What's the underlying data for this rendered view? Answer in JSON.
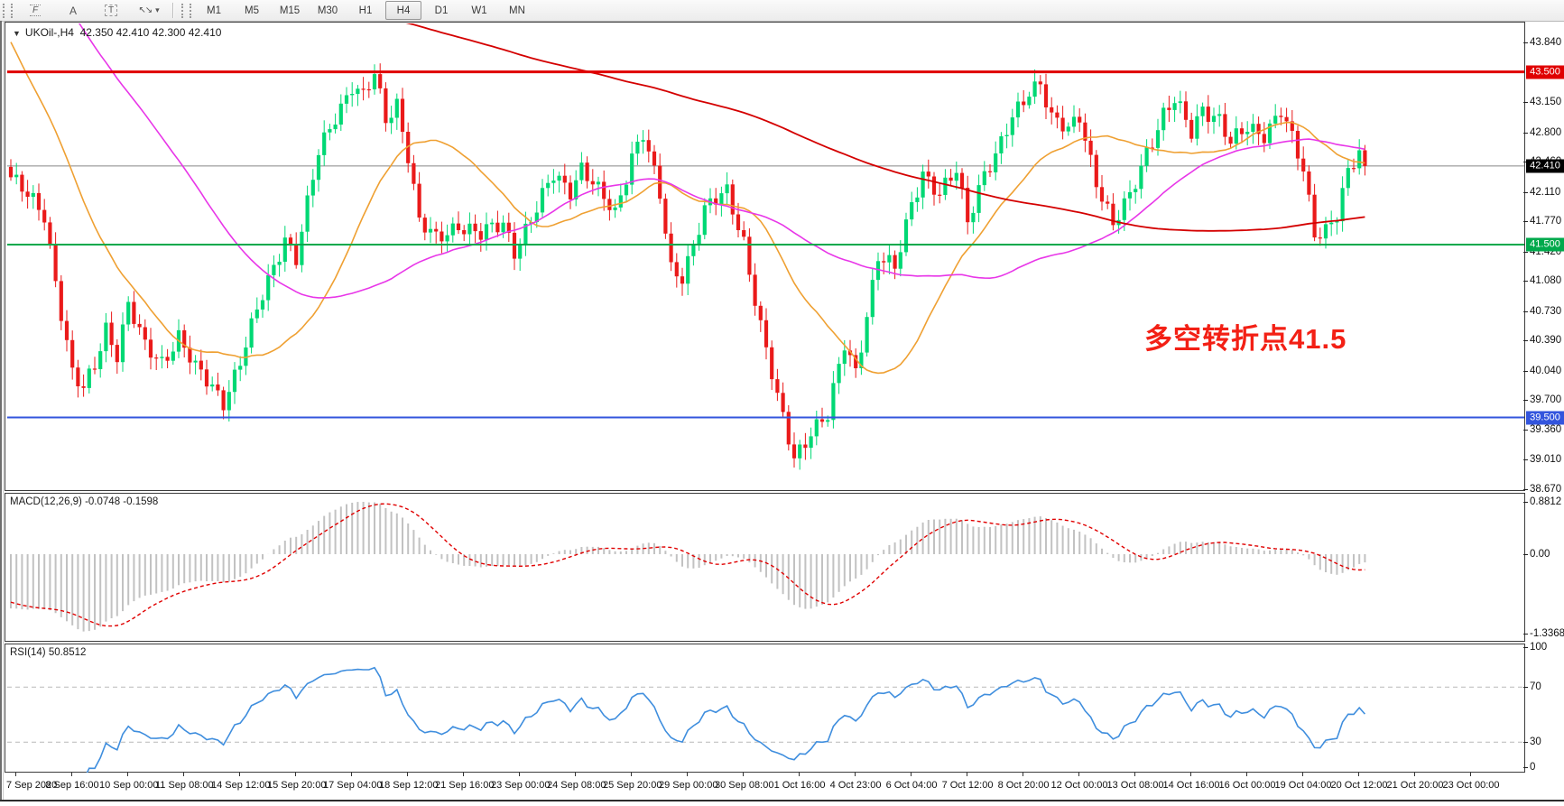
{
  "toolbar": {
    "dropdown_caret": "▾",
    "tools": [
      {
        "name": "fibonacci-retracement",
        "glyph": "F",
        "style": "fibo"
      },
      {
        "name": "text",
        "glyph": "A",
        "style": ""
      },
      {
        "name": "text-label",
        "glyph": "T",
        "style": "boxed"
      },
      {
        "name": "arrows",
        "glyph": "↖↘",
        "style": "arrows",
        "dropdown": true
      }
    ],
    "timeframes": [
      {
        "label": "M1"
      },
      {
        "label": "M5"
      },
      {
        "label": "M15"
      },
      {
        "label": "M30"
      },
      {
        "label": "H1"
      },
      {
        "label": "H4",
        "active": true
      },
      {
        "label": "D1"
      },
      {
        "label": "W1"
      },
      {
        "label": "MN"
      }
    ]
  },
  "chart": {
    "title": {
      "collapse_arrow": "▼",
      "symbol": "UKOil-,H4",
      "ohlc": "42.350 42.410 42.300 42.410"
    },
    "annotation": {
      "text": "多空转折点41.5",
      "color": "#f32015"
    }
  },
  "chart_data": {
    "type": "candlestick",
    "symbol": "UKOil-",
    "timeframe": "H4",
    "ohlc_display": {
      "open": "42.350",
      "high": "42.410",
      "low": "42.300",
      "close": "42.410"
    },
    "y_axis": {
      "range": [
        38.6,
        44.07
      ],
      "ticks": [
        "43.840",
        "43.150",
        "42.800",
        "42.460",
        "42.110",
        "41.770",
        "41.420",
        "41.080",
        "40.730",
        "40.390",
        "40.040",
        "39.700",
        "39.360",
        "39.010",
        "38.670"
      ]
    },
    "levels": [
      {
        "value": 43.5,
        "label": "43.500",
        "color": "#e00000",
        "width": 3
      },
      {
        "value": 41.5,
        "label": "41.500",
        "color": "#00a94c",
        "width": 2
      },
      {
        "value": 39.5,
        "label": "39.500",
        "color": "#3355dd",
        "width": 2
      }
    ],
    "current_price": {
      "value": 42.41,
      "label": "42.410",
      "line_color": "#888888",
      "badge_bg": "#000000"
    },
    "x_axis": {
      "bars_per_label": 10,
      "labels": [
        "7 Sep 2020",
        "8 Sep 16:00",
        "10 Sep 00:00",
        "11 Sep 08:00",
        "14 Sep 12:00",
        "15 Sep 20:00",
        "17 Sep 04:00",
        "18 Sep 12:00",
        "21 Sep 16:00",
        "23 Sep 00:00",
        "24 Sep 08:00",
        "25 Sep 20:00",
        "29 Sep 00:00",
        "30 Sep 08:00",
        "1 Oct 16:00",
        "4 Oct 23:00",
        "6 Oct 04:00",
        "7 Oct 12:00",
        "8 Oct 20:00",
        "12 Oct 00:00",
        "13 Oct 08:00",
        "14 Oct 16:00",
        "16 Oct 00:00",
        "19 Oct 04:00",
        "20 Oct 12:00",
        "21 Oct 20:00",
        "23 Oct 00:00"
      ]
    },
    "moving_averages": [
      {
        "name": "fast-ma",
        "color": "#efa032",
        "width": 1.6
      },
      {
        "name": "medium-ma",
        "color": "#e836e8",
        "width": 1.6
      },
      {
        "name": "slow-ma",
        "color": "#d40000",
        "width": 1.8
      }
    ],
    "indicators": {
      "macd": {
        "label": "MACD(12,26,9) -0.0748 -0.1598",
        "params": [
          12,
          26,
          9
        ],
        "values": [
          -0.0748,
          -0.1598
        ],
        "axis_labels": [
          "0.8812",
          "0.00",
          "-1.3368"
        ],
        "hist_color": "#c2c2c2",
        "signal_color": "#e00000"
      },
      "rsi": {
        "label": "RSI(14) 50.8512",
        "period": 14,
        "value": 50.8512,
        "axis_labels": [
          "100",
          "70",
          "30",
          "0"
        ],
        "level_lines": [
          70,
          30
        ],
        "line_color": "#3f8ede"
      }
    },
    "marker": {
      "bar": 138,
      "price": 39.62,
      "glyph": "↑",
      "color": "#cc0000"
    },
    "colors": {
      "up": "#00d874",
      "down": "#ea1a1a",
      "background": "#ffffff"
    },
    "reconstruction": {
      "bars_total": 265,
      "price_path_anchors": [
        [
          0,
          42.28
        ],
        [
          3,
          42.05
        ],
        [
          6,
          41.85
        ],
        [
          8,
          41.1
        ],
        [
          11,
          40.0
        ],
        [
          13,
          39.8
        ],
        [
          15,
          40.1
        ],
        [
          17,
          40.55
        ],
        [
          19,
          40.25
        ],
        [
          21,
          40.8
        ],
        [
          24,
          40.3
        ],
        [
          27,
          40.15
        ],
        [
          30,
          40.45
        ],
        [
          33,
          40.05
        ],
        [
          36,
          39.85
        ],
        [
          38,
          39.7
        ],
        [
          41,
          40.15
        ],
        [
          45,
          40.9
        ],
        [
          49,
          41.6
        ],
        [
          51,
          41.35
        ],
        [
          55,
          42.55
        ],
        [
          58,
          43.0
        ],
        [
          61,
          43.35
        ],
        [
          63,
          43.2
        ],
        [
          65,
          43.45
        ],
        [
          67,
          42.95
        ],
        [
          69,
          43.15
        ],
        [
          71,
          42.55
        ],
        [
          73,
          41.75
        ],
        [
          76,
          41.55
        ],
        [
          80,
          41.75
        ],
        [
          84,
          41.6
        ],
        [
          88,
          41.75
        ],
        [
          90,
          41.45
        ],
        [
          94,
          41.9
        ],
        [
          97,
          42.3
        ],
        [
          100,
          42.15
        ],
        [
          102,
          42.4
        ],
        [
          105,
          42.1
        ],
        [
          108,
          41.85
        ],
        [
          111,
          42.55
        ],
        [
          113,
          42.8
        ],
        [
          116,
          42.05
        ],
        [
          118,
          41.2
        ],
        [
          120,
          41.15
        ],
        [
          124,
          41.9
        ],
        [
          128,
          42.1
        ],
        [
          131,
          41.55
        ],
        [
          134,
          40.55
        ],
        [
          137,
          39.7
        ],
        [
          140,
          39.05
        ],
        [
          143,
          39.35
        ],
        [
          146,
          39.5
        ],
        [
          149,
          40.35
        ],
        [
          151,
          40.05
        ],
        [
          155,
          41.35
        ],
        [
          158,
          41.2
        ],
        [
          161,
          42.0
        ],
        [
          163,
          42.35
        ],
        [
          166,
          42.05
        ],
        [
          169,
          42.35
        ],
        [
          171,
          41.8
        ],
        [
          174,
          42.35
        ],
        [
          176,
          42.5
        ],
        [
          179,
          42.95
        ],
        [
          182,
          43.3
        ],
        [
          184,
          43.4
        ],
        [
          186,
          42.95
        ],
        [
          189,
          42.8
        ],
        [
          191,
          43.0
        ],
        [
          194,
          42.25
        ],
        [
          197,
          41.7
        ],
        [
          200,
          42.05
        ],
        [
          203,
          42.6
        ],
        [
          206,
          43.0
        ],
        [
          208,
          43.15
        ],
        [
          211,
          42.8
        ],
        [
          213,
          43.1
        ],
        [
          216,
          42.95
        ],
        [
          218,
          42.65
        ],
        [
          221,
          42.85
        ],
        [
          224,
          42.8
        ],
        [
          227,
          43.05
        ],
        [
          229,
          42.7
        ],
        [
          231,
          42.35
        ],
        [
          233,
          41.65
        ],
        [
          235,
          41.7
        ],
        [
          237,
          41.85
        ],
        [
          239,
          42.3
        ],
        [
          241,
          42.55
        ],
        [
          242,
          42.41
        ]
      ],
      "ma_periods": [
        24,
        60,
        220
      ],
      "prehistory": {
        "bars": 260,
        "plateau": 45.7,
        "decline_bars": 24,
        "decline_to": 42.4
      }
    }
  }
}
